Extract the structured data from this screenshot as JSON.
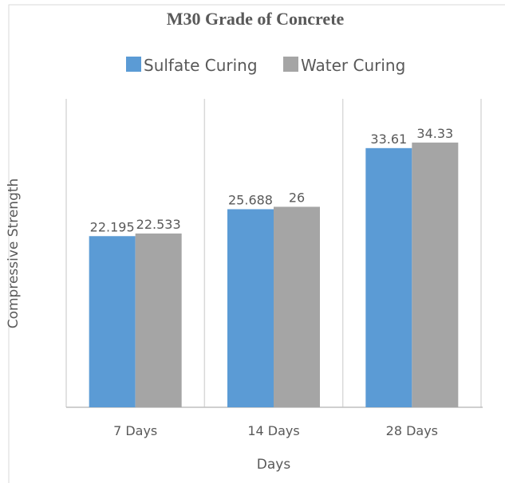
{
  "chart_data": {
    "type": "bar",
    "title": "M30 Grade of Concrete",
    "xlabel": "Days",
    "ylabel": "Compressive Strength",
    "categories": [
      "7 Days",
      "14 Days",
      "28 Days"
    ],
    "series": [
      {
        "name": "Sulfate Curing",
        "color": "#5b9bd5",
        "values": [
          22.195,
          25.688,
          33.61
        ],
        "labels": [
          "22.195",
          "25.688",
          "33.61"
        ]
      },
      {
        "name": "Water Curing",
        "color": "#a5a5a5",
        "values": [
          22.533,
          26,
          34.33
        ],
        "labels": [
          "22.533",
          "26",
          "34.33"
        ]
      }
    ],
    "ylim": [
      0,
      40
    ],
    "grid": "vertical category separators",
    "legend": "top"
  }
}
